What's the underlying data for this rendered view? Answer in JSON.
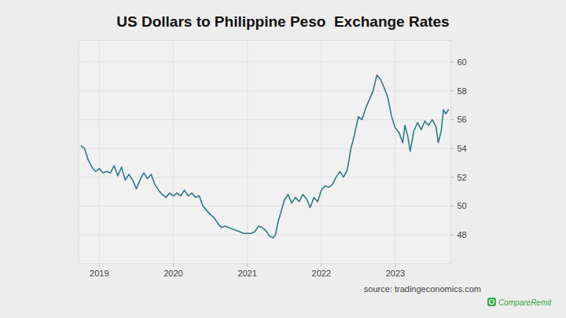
{
  "chart_data": {
    "type": "line",
    "title": "US Dollars to Philippine Peso  Exchange Rates",
    "annotations": [
      "source: tradingeconomics.com",
      "CompareRemit"
    ],
    "x": [
      2018.75,
      2018.8,
      2018.85,
      2018.9,
      2018.95,
      2019.0,
      2019.05,
      2019.1,
      2019.15,
      2019.2,
      2019.25,
      2019.3,
      2019.35,
      2019.4,
      2019.45,
      2019.5,
      2019.55,
      2019.6,
      2019.65,
      2019.7,
      2019.75,
      2019.8,
      2019.85,
      2019.9,
      2019.95,
      2020.0,
      2020.05,
      2020.1,
      2020.15,
      2020.2,
      2020.25,
      2020.3,
      2020.35,
      2020.4,
      2020.45,
      2020.5,
      2020.55,
      2020.6,
      2020.65,
      2020.7,
      2020.75,
      2020.8,
      2020.85,
      2020.9,
      2020.95,
      2021.0,
      2021.05,
      2021.1,
      2021.15,
      2021.2,
      2021.25,
      2021.3,
      2021.35,
      2021.38,
      2021.42,
      2021.45,
      2021.5,
      2021.55,
      2021.6,
      2021.65,
      2021.7,
      2021.75,
      2021.8,
      2021.85,
      2021.9,
      2021.95,
      2022.0,
      2022.05,
      2022.1,
      2022.15,
      2022.2,
      2022.25,
      2022.3,
      2022.35,
      2022.4,
      2022.45,
      2022.5,
      2022.55,
      2022.6,
      2022.65,
      2022.7,
      2022.75,
      2022.8,
      2022.85,
      2022.9,
      2022.95,
      2023.0,
      2023.05,
      2023.1,
      2023.13,
      2023.17,
      2023.2,
      2023.25,
      2023.3,
      2023.35,
      2023.4,
      2023.45,
      2023.5,
      2023.55,
      2023.58,
      2023.62,
      2023.65,
      2023.68,
      2023.72
    ],
    "values": [
      54.2,
      54.0,
      53.2,
      52.7,
      52.4,
      52.6,
      52.3,
      52.4,
      52.3,
      52.8,
      52.1,
      52.7,
      51.8,
      52.2,
      51.8,
      51.2,
      51.8,
      52.3,
      51.9,
      52.2,
      51.5,
      51.1,
      50.8,
      50.6,
      50.9,
      50.7,
      50.9,
      50.7,
      51.1,
      50.7,
      50.9,
      50.6,
      50.7,
      50.0,
      49.7,
      49.4,
      49.2,
      48.8,
      48.5,
      48.6,
      48.5,
      48.4,
      48.3,
      48.2,
      48.1,
      48.1,
      48.1,
      48.2,
      48.6,
      48.5,
      48.3,
      47.9,
      47.8,
      48.0,
      49.0,
      49.5,
      50.4,
      50.8,
      50.2,
      50.6,
      50.3,
      50.8,
      50.5,
      49.9,
      50.6,
      50.3,
      51.1,
      51.4,
      51.3,
      51.5,
      52.0,
      52.4,
      52.0,
      52.5,
      54.0,
      55.0,
      56.2,
      56.0,
      56.8,
      57.4,
      58.0,
      59.1,
      58.8,
      58.2,
      57.5,
      56.2,
      55.4,
      55.1,
      54.4,
      55.6,
      54.8,
      53.8,
      55.2,
      55.8,
      55.3,
      55.9,
      55.6,
      56.0,
      55.5,
      54.4,
      55.2,
      56.7,
      56.4,
      56.7
    ],
    "color": "#2f7a8a",
    "xlim": [
      2018.72,
      2023.75
    ],
    "xticks": [
      2019,
      2020,
      2021,
      2022,
      2023
    ],
    "ylim": [
      46,
      61.5
    ],
    "yticks": [
      48,
      50,
      52,
      54,
      56,
      58,
      60
    ],
    "grid": true
  }
}
